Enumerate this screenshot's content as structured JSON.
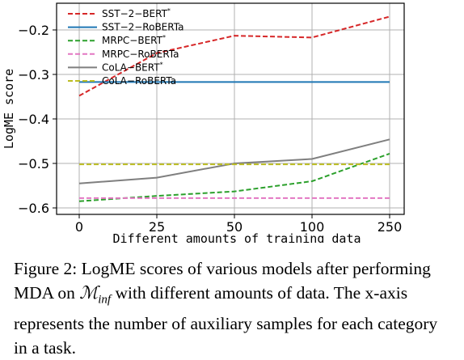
{
  "chart_data": {
    "type": "line",
    "categories": [
      "0",
      "25",
      "50",
      "100",
      "250"
    ],
    "xlabel": "Different amounts of training data",
    "ylabel": "LogME score",
    "ylim": [
      -0.6,
      -0.15
    ],
    "yticks": [
      -0.6,
      -0.5,
      -0.4,
      -0.3,
      -0.2
    ],
    "ytick_labels": [
      "−0.6",
      "−0.5",
      "−0.4",
      "−0.3",
      "−0.2"
    ],
    "grid": true,
    "legend_position": "top-left",
    "series": [
      {
        "name": "SST−2−BERT",
        "sup": "*",
        "color": "#d62728",
        "dash": "dashed",
        "values": [
          -0.348,
          -0.252,
          -0.213,
          -0.217,
          -0.17
        ]
      },
      {
        "name": "SST−2−RoBERTa",
        "sup": "",
        "color": "#1f77b4",
        "dash": "solid",
        "values": [
          -0.317,
          -0.317,
          -0.317,
          -0.317,
          -0.317
        ]
      },
      {
        "name": "MRPC−BERT",
        "sup": "*",
        "color": "#2ca02c",
        "dash": "dashed",
        "values": [
          -0.585,
          -0.573,
          -0.563,
          -0.54,
          -0.478
        ]
      },
      {
        "name": "MRPC−RoBERTa",
        "sup": "",
        "color": "#e377c2",
        "dash": "dashed",
        "values": [
          -0.578,
          -0.578,
          -0.578,
          -0.578,
          -0.578
        ]
      },
      {
        "name": "CoLA−BERT",
        "sup": "*",
        "color": "#7f7f7f",
        "dash": "solid",
        "values": [
          -0.545,
          -0.532,
          -0.5,
          -0.49,
          -0.446
        ]
      },
      {
        "name": "CoLA−RoBERTa",
        "sup": "",
        "color": "#bcbd22",
        "dash": "dashed",
        "values": [
          -0.502,
          -0.502,
          -0.502,
          -0.502,
          -0.502
        ]
      }
    ]
  },
  "caption": {
    "prefix": "Figure 2: LogME scores of various models after performing MDA on ",
    "math_main": "ℳ",
    "math_sub": "inf",
    "suffix": " with different amounts of data. The x-axis represents the number of auxiliary samples for each category in a task."
  }
}
